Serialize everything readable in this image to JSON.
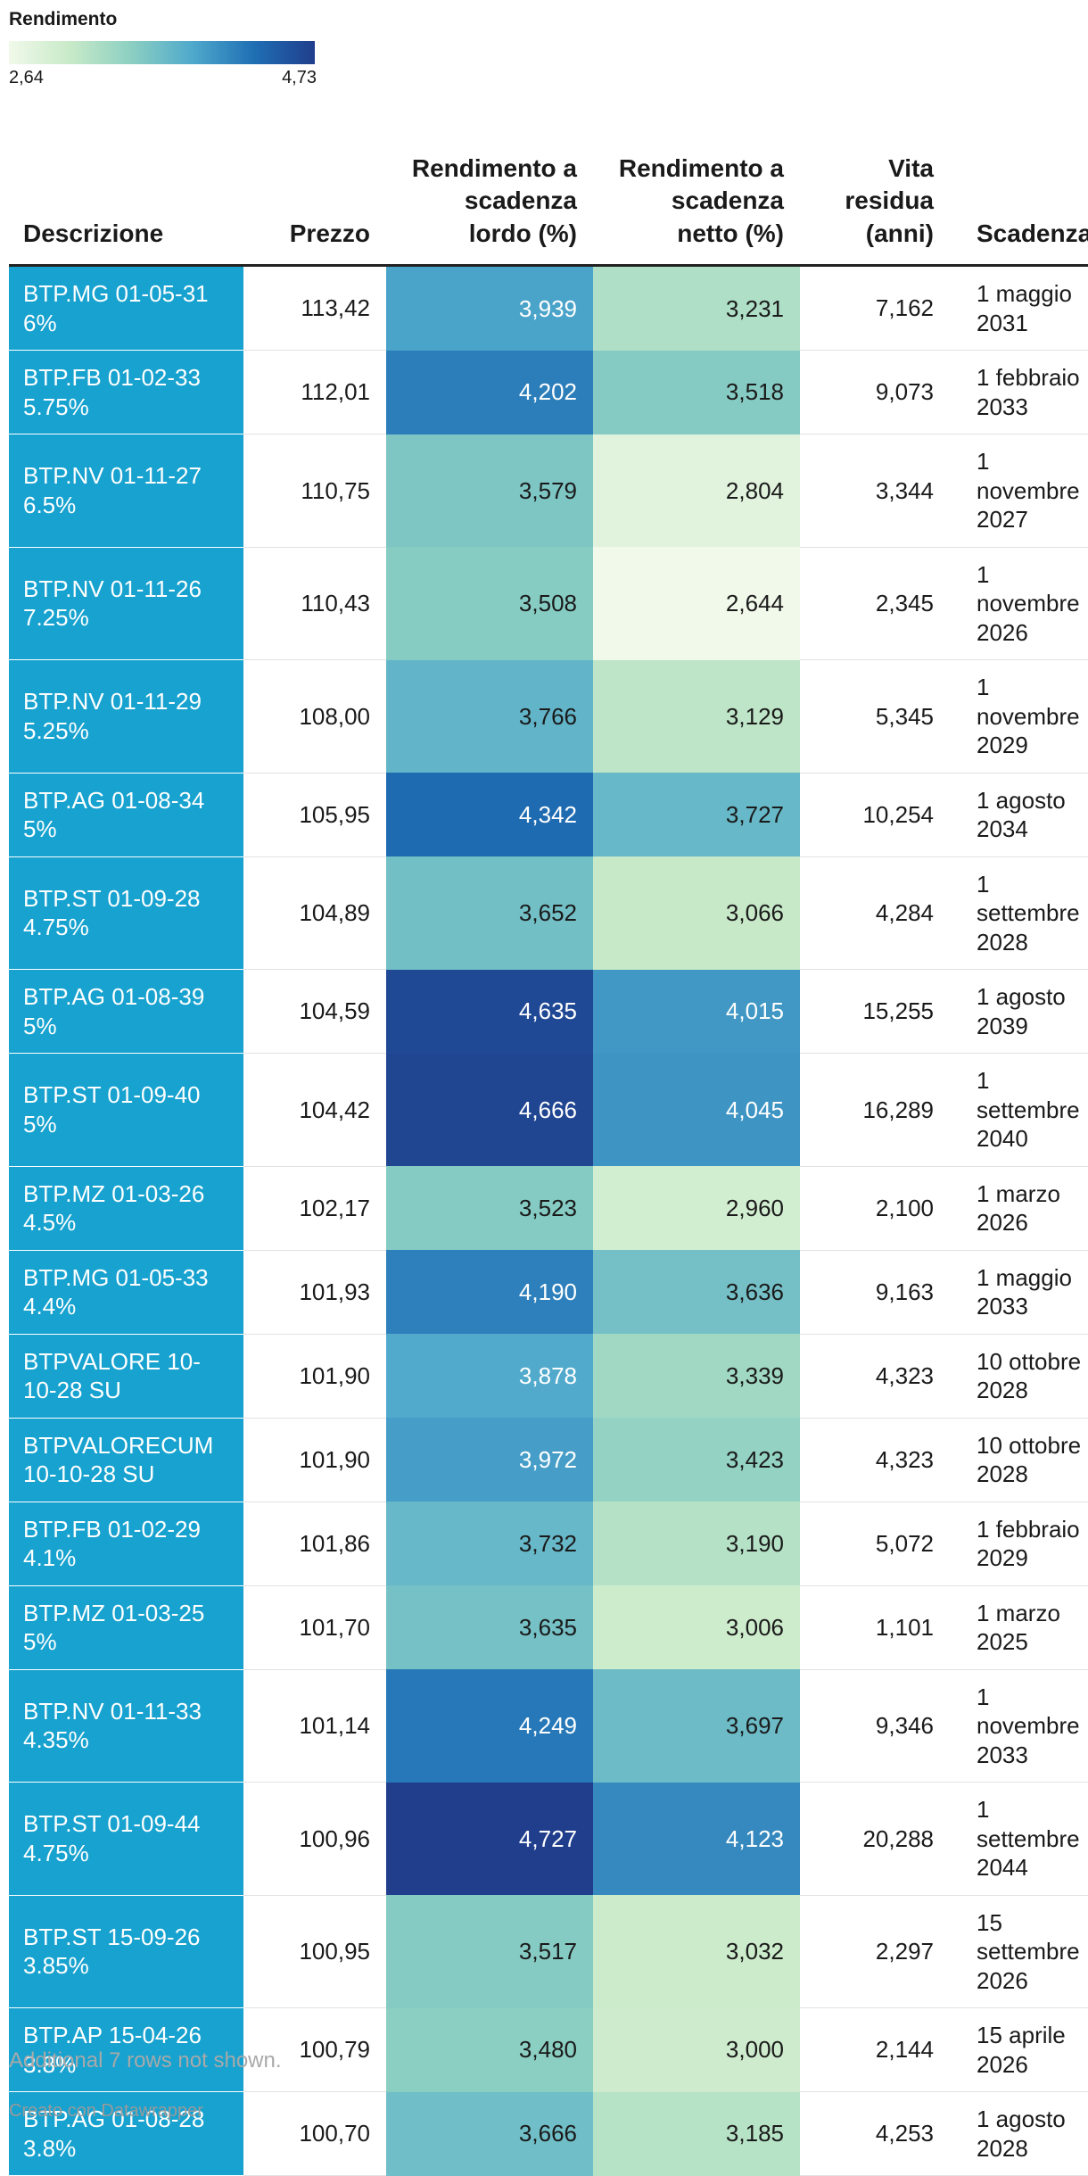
{
  "legend": {
    "title": "Rendimento",
    "min_label": "2,64",
    "max_label": "4,73",
    "min": 2.64,
    "max": 4.73,
    "colors": [
      "#f1f9ea",
      "#c8eac8",
      "#8ccfc2",
      "#4fa9cc",
      "#1f6fb4",
      "#203e8c"
    ]
  },
  "chart_data": {
    "type": "table",
    "columns": [
      "Descrizione",
      "Prezzo",
      "Rendimento a scadenza lordo (%)",
      "Rendimento a scadenza netto (%)",
      "Vita residua (anni)",
      "Scadenza"
    ],
    "rows": [
      {
        "desc": "BTP.MG 01-05-31 6%",
        "prezzo": "113,42",
        "lordo": "3,939",
        "netto": "3,231",
        "vita": "7,162",
        "scadenza": "1 maggio 2031"
      },
      {
        "desc": "BTP.FB 01-02-33 5.75%",
        "prezzo": "112,01",
        "lordo": "4,202",
        "netto": "3,518",
        "vita": "9,073",
        "scadenza": "1 febbraio 2033"
      },
      {
        "desc": "BTP.NV 01-11-27 6.5%",
        "prezzo": "110,75",
        "lordo": "3,579",
        "netto": "2,804",
        "vita": "3,344",
        "scadenza": "1 novembre 2027"
      },
      {
        "desc": "BTP.NV 01-11-26 7.25%",
        "prezzo": "110,43",
        "lordo": "3,508",
        "netto": "2,644",
        "vita": "2,345",
        "scadenza": "1 novembre 2026"
      },
      {
        "desc": "BTP.NV 01-11-29 5.25%",
        "prezzo": "108,00",
        "lordo": "3,766",
        "netto": "3,129",
        "vita": "5,345",
        "scadenza": "1 novembre 2029"
      },
      {
        "desc": "BTP.AG 01-08-34 5%",
        "prezzo": "105,95",
        "lordo": "4,342",
        "netto": "3,727",
        "vita": "10,254",
        "scadenza": "1 agosto 2034"
      },
      {
        "desc": "BTP.ST 01-09-28 4.75%",
        "prezzo": "104,89",
        "lordo": "3,652",
        "netto": "3,066",
        "vita": "4,284",
        "scadenza": "1 settembre 2028"
      },
      {
        "desc": "BTP.AG 01-08-39 5%",
        "prezzo": "104,59",
        "lordo": "4,635",
        "netto": "4,015",
        "vita": "15,255",
        "scadenza": "1 agosto 2039"
      },
      {
        "desc": "BTP.ST 01-09-40 5%",
        "prezzo": "104,42",
        "lordo": "4,666",
        "netto": "4,045",
        "vita": "16,289",
        "scadenza": "1 settembre 2040"
      },
      {
        "desc": "BTP.MZ 01-03-26 4.5%",
        "prezzo": "102,17",
        "lordo": "3,523",
        "netto": "2,960",
        "vita": "2,100",
        "scadenza": "1 marzo 2026"
      },
      {
        "desc": "BTP.MG 01-05-33 4.4%",
        "prezzo": "101,93",
        "lordo": "4,190",
        "netto": "3,636",
        "vita": "9,163",
        "scadenza": "1 maggio 2033"
      },
      {
        "desc": "BTPVALORE 10-10-28 SU",
        "prezzo": "101,90",
        "lordo": "3,878",
        "netto": "3,339",
        "vita": "4,323",
        "scadenza": "10 ottobre 2028"
      },
      {
        "desc": "BTPVALORECUM 10-10-28 SU",
        "prezzo": "101,90",
        "lordo": "3,972",
        "netto": "3,423",
        "vita": "4,323",
        "scadenza": "10 ottobre 2028"
      },
      {
        "desc": "BTP.FB 01-02-29 4.1%",
        "prezzo": "101,86",
        "lordo": "3,732",
        "netto": "3,190",
        "vita": "5,072",
        "scadenza": "1 febbraio 2029"
      },
      {
        "desc": "BTP.MZ 01-03-25 5%",
        "prezzo": "101,70",
        "lordo": "3,635",
        "netto": "3,006",
        "vita": "1,101",
        "scadenza": "1 marzo 2025"
      },
      {
        "desc": "BTP.NV 01-11-33 4.35%",
        "prezzo": "101,14",
        "lordo": "4,249",
        "netto": "3,697",
        "vita": "9,346",
        "scadenza": "1 novembre 2033"
      },
      {
        "desc": "BTP.ST 01-09-44 4.75%",
        "prezzo": "100,96",
        "lordo": "4,727",
        "netto": "4,123",
        "vita": "20,288",
        "scadenza": "1 settembre 2044"
      },
      {
        "desc": "BTP.ST 15-09-26 3.85%",
        "prezzo": "100,95",
        "lordo": "3,517",
        "netto": "3,032",
        "vita": "2,297",
        "scadenza": "15 settembre 2026"
      },
      {
        "desc": "BTP.AP 15-04-26 3.8%",
        "prezzo": "100,79",
        "lordo": "3,480",
        "netto": "3,000",
        "vita": "2,144",
        "scadenza": "15 aprile 2026"
      },
      {
        "desc": "BTP.AG 01-08-28 3.8%",
        "prezzo": "100,70",
        "lordo": "3,666",
        "netto": "3,185",
        "vita": "4,253",
        "scadenza": "1 agosto 2028"
      }
    ]
  },
  "header": {
    "desc": "Descrizione",
    "prezzo": "Prezzo",
    "lordo": "Rendimento a scadenza lordo (%)",
    "netto": "Rendimento a scadenza netto (%)",
    "vita": "Vita residua (anni)",
    "scadenza": "Scadenza"
  },
  "footer": {
    "note": "Additional 7 rows not shown.",
    "credit": "Creato con Datawrapper"
  }
}
